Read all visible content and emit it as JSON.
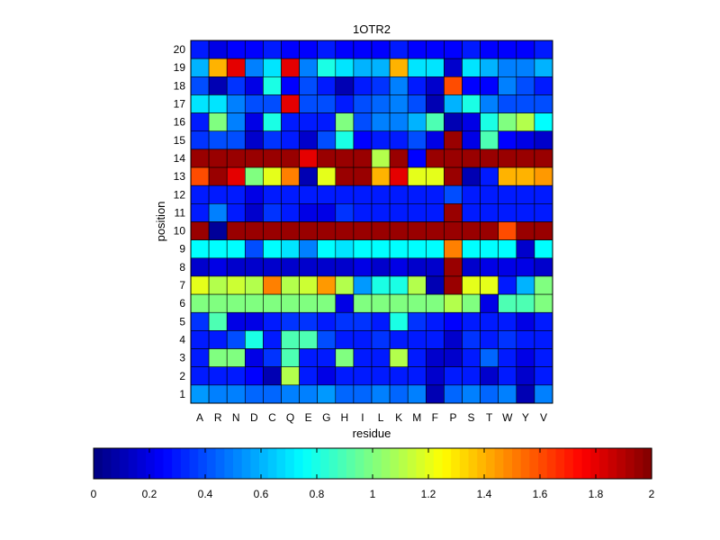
{
  "chart_data": {
    "type": "heatmap",
    "title": "1OTR2",
    "xlabel": "residue",
    "ylabel": "position",
    "x_categories": [
      "A",
      "R",
      "N",
      "D",
      "C",
      "Q",
      "E",
      "G",
      "H",
      "I",
      "L",
      "K",
      "M",
      "F",
      "P",
      "S",
      "T",
      "W",
      "Y",
      "V"
    ],
    "y_categories": [
      "1",
      "2",
      "3",
      "4",
      "5",
      "6",
      "7",
      "8",
      "9",
      "10",
      "11",
      "12",
      "13",
      "14",
      "15",
      "16",
      "17",
      "18",
      "19",
      "20"
    ],
    "colormap": "jet",
    "clim": [
      0,
      2
    ],
    "colorbar": {
      "orientation": "horizontal",
      "placement": "bottom",
      "tick_values": [
        0,
        0.2,
        0.4,
        0.6,
        0.8,
        1,
        1.2,
        1.4,
        1.6,
        1.8,
        2
      ],
      "tick_labels": [
        "0",
        "0.2",
        "0.4",
        "0.6",
        "0.8",
        "1",
        "1.2",
        "1.4",
        "1.6",
        "1.8",
        "2"
      ]
    },
    "rows": [
      {
        "position": "20",
        "values": [
          0.3,
          0.2,
          0.25,
          0.25,
          0.3,
          0.25,
          0.25,
          0.3,
          0.25,
          0.25,
          0.25,
          0.3,
          0.25,
          0.25,
          0.25,
          0.3,
          0.25,
          0.25,
          0.25,
          0.3
        ]
      },
      {
        "position": "19",
        "values": [
          0.6,
          1.4,
          1.8,
          0.5,
          0.7,
          1.8,
          0.5,
          0.8,
          0.7,
          0.6,
          0.6,
          1.4,
          0.7,
          0.7,
          0.15,
          0.7,
          0.6,
          0.5,
          0.5,
          0.6
        ]
      },
      {
        "position": "18",
        "values": [
          0.4,
          0.1,
          0.35,
          0.2,
          0.8,
          0.25,
          0.4,
          0.3,
          0.1,
          0.3,
          0.35,
          0.5,
          0.3,
          0.15,
          1.6,
          0.25,
          0.25,
          0.5,
          0.4,
          0.3
        ]
      },
      {
        "position": "17",
        "values": [
          0.7,
          0.7,
          0.5,
          0.4,
          0.4,
          1.8,
          0.4,
          0.4,
          0.3,
          0.4,
          0.45,
          0.5,
          0.4,
          0.1,
          0.6,
          0.8,
          0.5,
          0.4,
          0.4,
          0.4
        ]
      },
      {
        "position": "16",
        "values": [
          0.3,
          1.0,
          0.5,
          0.2,
          0.8,
          0.3,
          0.3,
          0.3,
          1.0,
          0.4,
          0.5,
          0.5,
          0.6,
          0.9,
          0.1,
          0.2,
          0.8,
          1.0,
          1.1,
          0.75
        ]
      },
      {
        "position": "15",
        "values": [
          0.35,
          0.4,
          0.4,
          0.15,
          0.35,
          0.3,
          0.15,
          0.4,
          0.8,
          0.25,
          0.3,
          0.3,
          0.4,
          0.2,
          1.95,
          0.2,
          0.9,
          0.25,
          0.2,
          0.15
        ]
      },
      {
        "position": "14",
        "values": [
          1.95,
          1.95,
          1.95,
          1.95,
          1.95,
          1.95,
          1.8,
          1.95,
          1.95,
          1.95,
          1.1,
          1.95,
          0.25,
          1.95,
          1.95,
          1.95,
          1.95,
          1.95,
          1.95,
          1.95
        ]
      },
      {
        "position": "13",
        "values": [
          1.6,
          1.95,
          1.8,
          1.0,
          1.2,
          1.5,
          0.1,
          1.2,
          1.95,
          1.95,
          1.4,
          1.8,
          1.2,
          1.2,
          1.95,
          0.1,
          0.3,
          1.4,
          1.4,
          1.45
        ]
      },
      {
        "position": "12",
        "values": [
          0.3,
          0.3,
          0.3,
          0.2,
          0.3,
          0.3,
          0.3,
          0.3,
          0.3,
          0.3,
          0.3,
          0.3,
          0.3,
          0.3,
          0.4,
          0.3,
          0.3,
          0.3,
          0.3,
          0.3
        ]
      },
      {
        "position": "11",
        "values": [
          0.3,
          0.5,
          0.3,
          0.15,
          0.35,
          0.3,
          0.2,
          0.2,
          0.35,
          0.3,
          0.3,
          0.3,
          0.3,
          0.3,
          1.95,
          0.3,
          0.3,
          0.3,
          0.3,
          0.3
        ]
      },
      {
        "position": "10",
        "values": [
          1.95,
          0.05,
          1.95,
          1.95,
          1.95,
          1.95,
          1.95,
          1.95,
          1.95,
          1.95,
          1.95,
          1.95,
          1.95,
          1.95,
          1.95,
          1.95,
          1.95,
          1.6,
          1.95,
          1.95
        ]
      },
      {
        "position": "9",
        "values": [
          0.75,
          0.75,
          0.75,
          0.4,
          0.75,
          0.7,
          0.5,
          0.75,
          0.7,
          0.75,
          0.75,
          0.75,
          0.75,
          0.75,
          1.5,
          0.75,
          0.75,
          0.75,
          0.15,
          0.75
        ]
      },
      {
        "position": "8",
        "values": [
          0.15,
          0.2,
          0.15,
          0.15,
          0.15,
          0.15,
          0.15,
          0.15,
          0.15,
          0.2,
          0.15,
          0.2,
          0.15,
          0.15,
          1.95,
          0.15,
          0.2,
          0.2,
          0.2,
          0.15
        ]
      },
      {
        "position": "7",
        "values": [
          1.2,
          1.1,
          1.15,
          1.1,
          1.5,
          1.1,
          1.15,
          1.45,
          1.1,
          0.55,
          0.8,
          0.8,
          1.1,
          0.1,
          1.95,
          1.2,
          1.2,
          0.3,
          0.6,
          1.0
        ]
      },
      {
        "position": "6",
        "values": [
          1.0,
          1.0,
          1.0,
          1.0,
          1.0,
          1.0,
          1.0,
          1.0,
          0.2,
          1.0,
          1.0,
          1.0,
          1.0,
          1.0,
          1.1,
          1.0,
          0.2,
          0.9,
          0.9,
          1.0
        ]
      },
      {
        "position": "5",
        "values": [
          0.35,
          0.9,
          0.2,
          0.2,
          0.3,
          0.35,
          0.35,
          0.3,
          0.35,
          0.35,
          0.3,
          0.8,
          0.35,
          0.3,
          0.25,
          0.3,
          0.3,
          0.3,
          0.2,
          0.3
        ]
      },
      {
        "position": "4",
        "values": [
          0.3,
          0.3,
          0.4,
          0.8,
          0.3,
          0.9,
          0.9,
          0.4,
          0.3,
          0.3,
          0.35,
          0.3,
          0.3,
          0.3,
          0.15,
          0.35,
          0.3,
          0.35,
          0.3,
          0.3
        ]
      },
      {
        "position": "3",
        "values": [
          0.3,
          1.0,
          1.0,
          0.2,
          0.35,
          0.9,
          0.3,
          0.3,
          1.0,
          0.3,
          0.3,
          1.1,
          0.3,
          0.15,
          0.15,
          0.3,
          0.45,
          0.3,
          0.2,
          0.3
        ]
      },
      {
        "position": "2",
        "values": [
          0.3,
          0.3,
          0.3,
          0.25,
          0.1,
          1.1,
          0.3,
          0.2,
          0.3,
          0.3,
          0.3,
          0.3,
          0.3,
          0.15,
          0.3,
          0.3,
          0.15,
          0.3,
          0.15,
          0.3
        ]
      },
      {
        "position": "1",
        "values": [
          0.55,
          0.5,
          0.5,
          0.45,
          0.45,
          0.5,
          0.5,
          0.55,
          0.45,
          0.45,
          0.5,
          0.45,
          0.5,
          0.1,
          0.45,
          0.5,
          0.45,
          0.5,
          0.1,
          0.5
        ]
      }
    ]
  }
}
